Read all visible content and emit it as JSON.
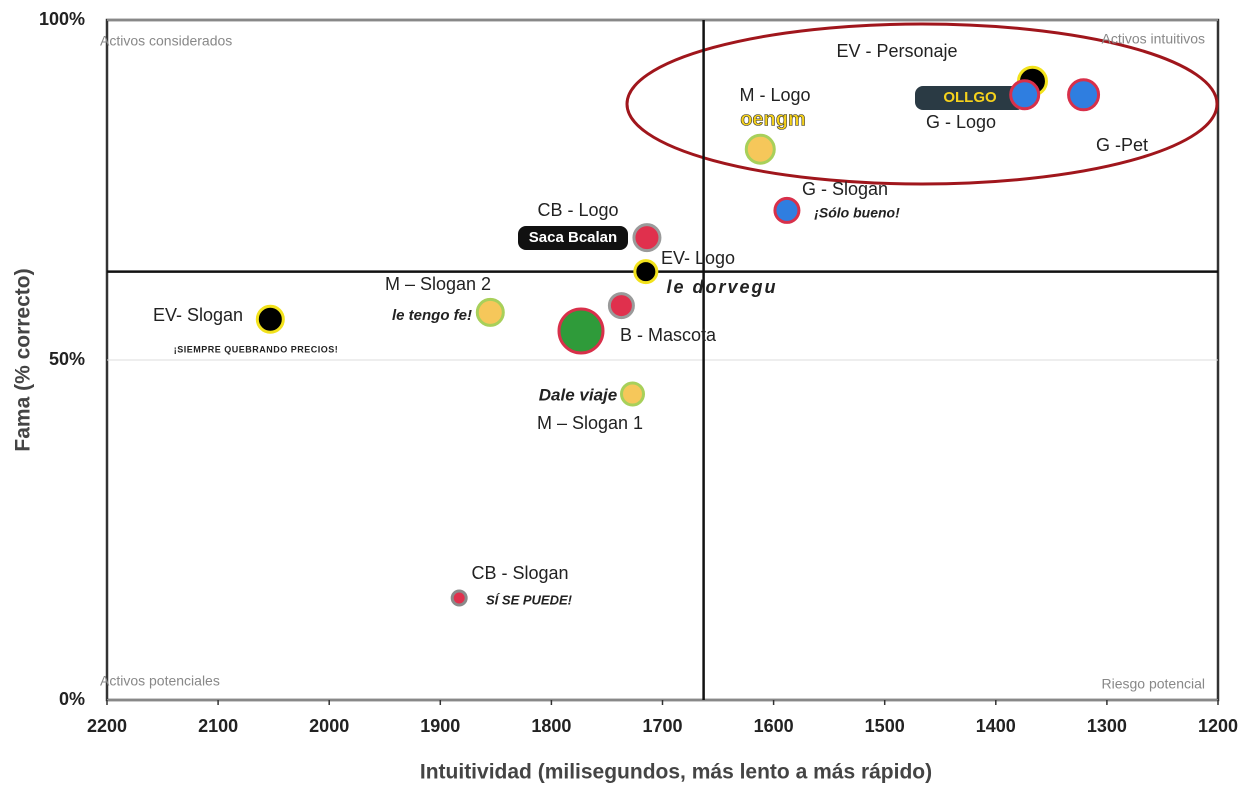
{
  "chart_data": {
    "type": "scatter",
    "x_label": "Intuitividad (milisegundos, más lento a más rápido)",
    "y_label": "Fama (% correcto)",
    "xlim": [
      2200,
      1200
    ],
    "ylim": [
      0,
      100
    ],
    "xticks": [
      2200,
      2100,
      2000,
      1900,
      1800,
      1700,
      1600,
      1500,
      1400,
      1300,
      1200
    ],
    "yticks": [
      {
        "value": 0,
        "label": "0%"
      },
      {
        "value": 50,
        "label": "50%"
      },
      {
        "value": 100,
        "label": "100%"
      }
    ],
    "grid": true,
    "quadrant_lines": {
      "x": 1663,
      "y": 63
    },
    "quadrant_labels": [
      "Activos considerados",
      "Activos intuitivos",
      "Activos potenciales",
      "Riesgo potencial"
    ],
    "points": [
      {
        "label": "EV- Slogan",
        "x": 2053,
        "y": 56,
        "color": "#000000",
        "stroke": "#f2e21c",
        "logo": "¡SIEMPRE QUEBRANDO PRECIOS!"
      },
      {
        "label": "M – Slogan 2",
        "x": 1855,
        "y": 57,
        "color": "#f6c75a",
        "stroke": "#a8d05a",
        "logo": "le tengo fe!"
      },
      {
        "label": "CB - Slogan",
        "x": 1883,
        "y": 15,
        "color": "#e0304d",
        "stroke": "#8a8a8a",
        "logo": "SÍ SE PUEDE!"
      },
      {
        "label": "B - Mascota",
        "x": 1737,
        "y": 58,
        "color": "#e0304d",
        "stroke": "#9a9a9a"
      },
      {
        "label": "M – Slogan 1",
        "x": 1727,
        "y": 45,
        "color": "#f6c75a",
        "stroke": "#a8d05a",
        "logo": "Dale viaje"
      },
      {
        "label": "EV- Logo",
        "x": 1715,
        "y": 63,
        "color": "#000000",
        "stroke": "#f2e21c",
        "logo": "le dorvegu"
      },
      {
        "label": "CB - Logo",
        "x": 1714,
        "y": 68,
        "color": "#e0304d",
        "stroke": "#9a9a9a",
        "logo": "Saca Bcalan"
      },
      {
        "label": "M - Logo",
        "x": 1612,
        "y": 81,
        "color": "#f6c75a",
        "stroke": "#a8d05a",
        "logo": "oengm"
      },
      {
        "label": "G - Slogan",
        "x": 1588,
        "y": 72,
        "color": "#2f7ee0",
        "stroke": "#d8304a",
        "logo": "¡Sólo bueno!"
      },
      {
        "label": "EV - Personaje",
        "x": 1367,
        "y": 91,
        "color": "#000000",
        "stroke": "#f2e21c"
      },
      {
        "label": "G - Logo",
        "x": 1374,
        "y": 89,
        "color": "#2f7ee0",
        "stroke": "#d8304a",
        "logo": "OLLGO"
      },
      {
        "label": "G -Pet",
        "x": 1321,
        "y": 89,
        "color": "#2f7ee0",
        "stroke": "#d8304a"
      }
    ]
  }
}
